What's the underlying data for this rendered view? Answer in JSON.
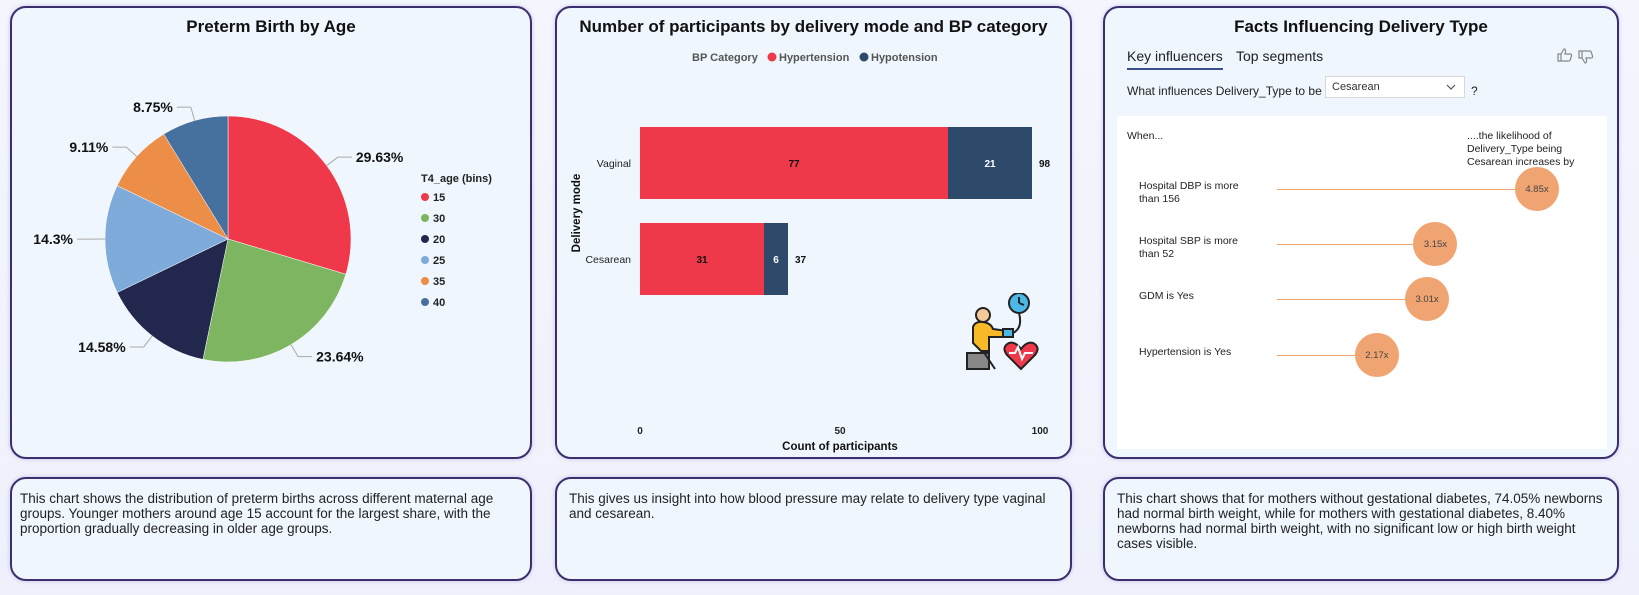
{
  "pie_card": {
    "title": "Preterm Birth by Age",
    "note": "This chart shows the distribution of preterm births across different maternal age groups. Younger mothers around age 15 account for the largest share, with the proportion gradually decreasing in older age groups."
  },
  "bar_card": {
    "title": "Number of participants by delivery mode and BP category",
    "note": "This gives us insight into how blood pressure may relate to delivery type vaginal and cesarean."
  },
  "influencer_card": {
    "title": "Facts Influencing Delivery Type",
    "tabs": [
      "Key influencers",
      "Top segments"
    ],
    "question_prefix": "What influences Delivery_Type to be",
    "selected_value": "Cesarean",
    "question_suffix": "?",
    "col_when": "When...",
    "col_likelihood": "....the likelihood of Delivery_Type being Cesarean increases by",
    "rows": [
      {
        "label": "Hospital DBP is more than 156",
        "value": "4.85x",
        "factor": 4.85
      },
      {
        "label": "Hospital SBP is more than 52",
        "value": "3.15x",
        "factor": 3.15
      },
      {
        "label": "GDM is Yes",
        "value": "3.01x",
        "factor": 3.01
      },
      {
        "label": "Hypertension is Yes",
        "value": "2.17x",
        "factor": 2.17
      }
    ],
    "note": "This chart shows that for mothers without gestational diabetes, 74.05% newborns had normal birth weight, while for mothers with gestational diabetes, 8.40% newborns had normal birth weight, with no significant low or high birth weight cases visible."
  },
  "colors": {
    "hypertension": "#ef3849",
    "hypotension": "#2e4a6b",
    "bubble": "#f0a472"
  },
  "icons": [
    "thumbs-up-icon",
    "thumbs-down-icon",
    "chevron-down-icon",
    "blood-pressure-patient-icon"
  ],
  "chart_data": [
    {
      "type": "pie",
      "title": "Preterm Birth by Age",
      "legend_title": "T4_age (bins)",
      "legend_position": "right",
      "slices": [
        {
          "label": "15",
          "value": 29.63,
          "display": "29.63%",
          "color": "#ef3849"
        },
        {
          "label": "30",
          "value": 23.64,
          "display": "23.64%",
          "color": "#7db560"
        },
        {
          "label": "20",
          "value": 14.58,
          "display": "14.58%",
          "color": "#22284d"
        },
        {
          "label": "25",
          "value": 14.3,
          "display": "14.3%",
          "color": "#7fabdb"
        },
        {
          "label": "35",
          "value": 9.11,
          "display": "9.11%",
          "color": "#ec8d48"
        },
        {
          "label": "40",
          "value": 8.75,
          "display": "8.75%",
          "color": "#46709e"
        }
      ]
    },
    {
      "type": "bar",
      "orientation": "horizontal",
      "stacked": true,
      "title": "Number of participants by delivery mode and BP category",
      "legend_title": "BP Category",
      "legend_position": "top",
      "categories": [
        "Vaginal",
        "Cesarean"
      ],
      "series": [
        {
          "name": "Hypertension",
          "values": [
            77,
            31
          ]
        },
        {
          "name": "Hypotension",
          "values": [
            21,
            6
          ]
        }
      ],
      "totals": [
        98,
        37
      ],
      "xlabel": "Count of participants",
      "ylabel": "Delivery mode",
      "xlim": [
        0,
        100
      ],
      "xticks": [
        "0",
        "50",
        "100"
      ]
    }
  ]
}
